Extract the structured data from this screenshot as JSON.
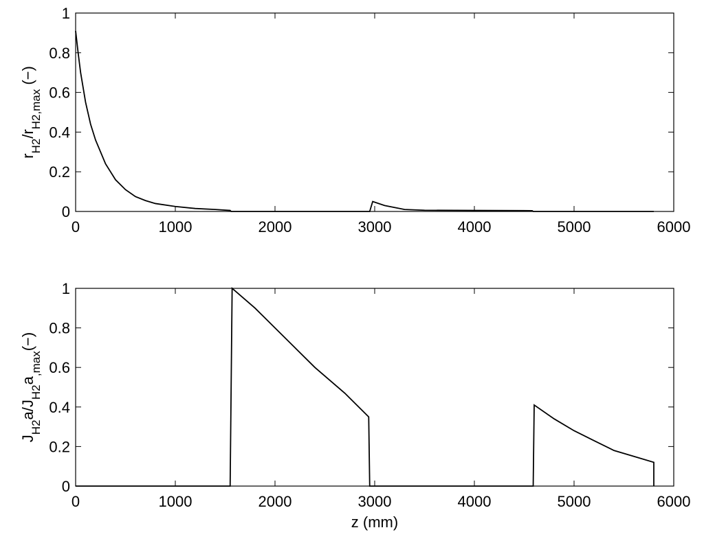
{
  "chart_data": [
    {
      "type": "line",
      "ylabel_parts": [
        {
          "text": "r",
          "sub": false
        },
        {
          "text": "H2",
          "sub": true
        },
        {
          "text": "/r",
          "sub": false
        },
        {
          "text": "H2,max",
          "sub": true
        },
        {
          "text": " (−)",
          "sub": false
        }
      ],
      "x": [
        0,
        25,
        50,
        100,
        150,
        200,
        300,
        400,
        500,
        600,
        700,
        800,
        1000,
        1200,
        1400,
        1550,
        1560,
        2950,
        2980,
        3100,
        3200,
        3300,
        3500,
        4000,
        4580,
        4590,
        5800
      ],
      "values": [
        0.91,
        0.8,
        0.7,
        0.55,
        0.44,
        0.36,
        0.24,
        0.16,
        0.11,
        0.075,
        0.055,
        0.04,
        0.025,
        0.015,
        0.01,
        0.005,
        0,
        0,
        0.05,
        0.03,
        0.02,
        0.01,
        0.006,
        0.005,
        0.004,
        0,
        0
      ],
      "color": "#000000",
      "xlim": [
        0,
        6000
      ],
      "xticks": [
        0,
        1000,
        2000,
        3000,
        4000,
        5000,
        6000
      ],
      "ylim": [
        0,
        1
      ],
      "yticks": [
        0,
        0.2,
        0.4,
        0.6,
        0.8,
        1
      ]
    },
    {
      "type": "line",
      "ylabel_parts": [
        {
          "text": "J",
          "sub": false
        },
        {
          "text": "H2",
          "sub": true
        },
        {
          "text": "a/J",
          "sub": false
        },
        {
          "text": "H2",
          "sub": true
        },
        {
          "text": "a",
          "sub": false
        },
        {
          "text": ",max",
          "sub": true
        },
        {
          "text": "(−)",
          "sub": false
        }
      ],
      "xlabel": "z (mm)",
      "x": [
        0,
        1550,
        1570,
        1800,
        2000,
        2200,
        2400,
        2700,
        2940,
        2950,
        4590,
        4600,
        4800,
        5000,
        5200,
        5400,
        5600,
        5800,
        5800
      ],
      "values": [
        0,
        0,
        1.0,
        0.9,
        0.8,
        0.7,
        0.6,
        0.47,
        0.35,
        0,
        0,
        0.41,
        0.34,
        0.28,
        0.23,
        0.18,
        0.15,
        0.12,
        0
      ],
      "color": "#000000",
      "xlim": [
        0,
        6000
      ],
      "xticks": [
        0,
        1000,
        2000,
        3000,
        4000,
        5000,
        6000
      ],
      "ylim": [
        0,
        1
      ],
      "yticks": [
        0,
        0.2,
        0.4,
        0.6,
        0.8,
        1
      ]
    }
  ]
}
